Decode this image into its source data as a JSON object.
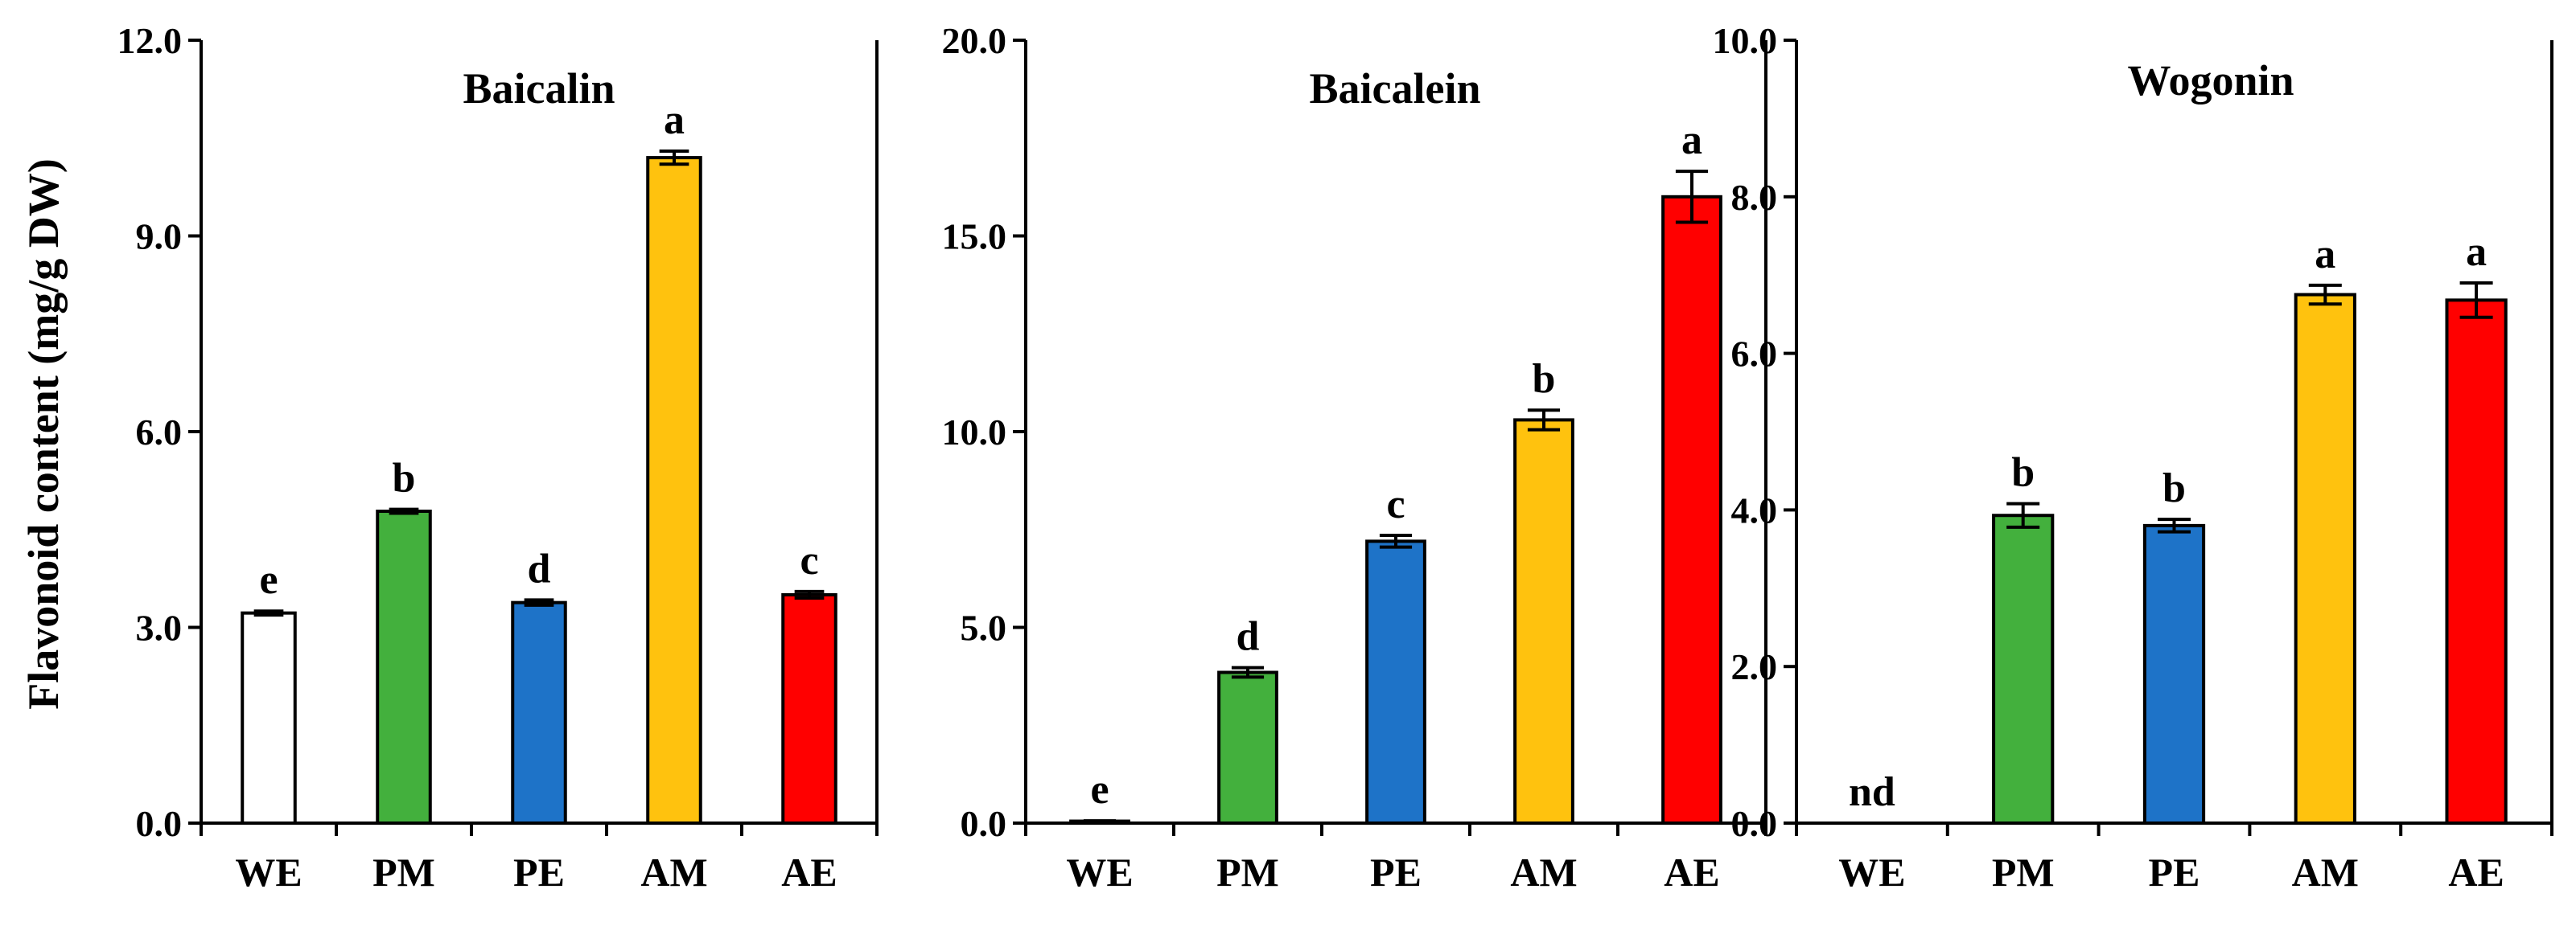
{
  "ylabel": "Flavonoid content (mg/g DW)",
  "colors": {
    "WE": "#ffffff",
    "PM": "#43b03d",
    "PE": "#1e73c8",
    "AM": "#ffc20e",
    "AE": "#ff0000"
  },
  "chart_data": [
    {
      "type": "bar",
      "title": "Baicalin",
      "categories": [
        "WE",
        "PM",
        "PE",
        "AM",
        "AE"
      ],
      "values": [
        3.22,
        4.78,
        3.38,
        10.2,
        3.5
      ],
      "errors": [
        0.03,
        0.03,
        0.04,
        0.1,
        0.05
      ],
      "letters": [
        "e",
        "b",
        "d",
        "a",
        "c"
      ],
      "ylim": [
        0,
        12
      ],
      "yticks": [
        "0.0",
        "3.0",
        "6.0",
        "9.0",
        "12.0"
      ],
      "tick_values": [
        0,
        3,
        6,
        9,
        12
      ]
    },
    {
      "type": "bar",
      "title": "Baicalein",
      "categories": [
        "WE",
        "PM",
        "PE",
        "AM",
        "AE"
      ],
      "values": [
        0.05,
        3.85,
        7.2,
        10.3,
        16.0
      ],
      "errors": [
        0.01,
        0.12,
        0.15,
        0.25,
        0.65
      ],
      "letters": [
        "e",
        "d",
        "c",
        "b",
        "a"
      ],
      "ylim": [
        0,
        20
      ],
      "yticks": [
        "0.0",
        "5.0",
        "10.0",
        "15.0",
        "20.0"
      ],
      "tick_values": [
        0,
        5,
        10,
        15,
        20
      ]
    },
    {
      "type": "bar",
      "title": "Wogonin",
      "categories": [
        "WE",
        "PM",
        "PE",
        "AM",
        "AE"
      ],
      "values": [
        null,
        3.93,
        3.8,
        6.75,
        6.68
      ],
      "errors": [
        null,
        0.15,
        0.08,
        0.12,
        0.22
      ],
      "letters": [
        "nd",
        "b",
        "b",
        "a",
        "a"
      ],
      "ylim": [
        0,
        10
      ],
      "yticks": [
        "0.0",
        "2.0",
        "4.0",
        "6.0",
        "8.0",
        "10.0"
      ],
      "tick_values": [
        0,
        2,
        4,
        6,
        8,
        10
      ]
    }
  ]
}
